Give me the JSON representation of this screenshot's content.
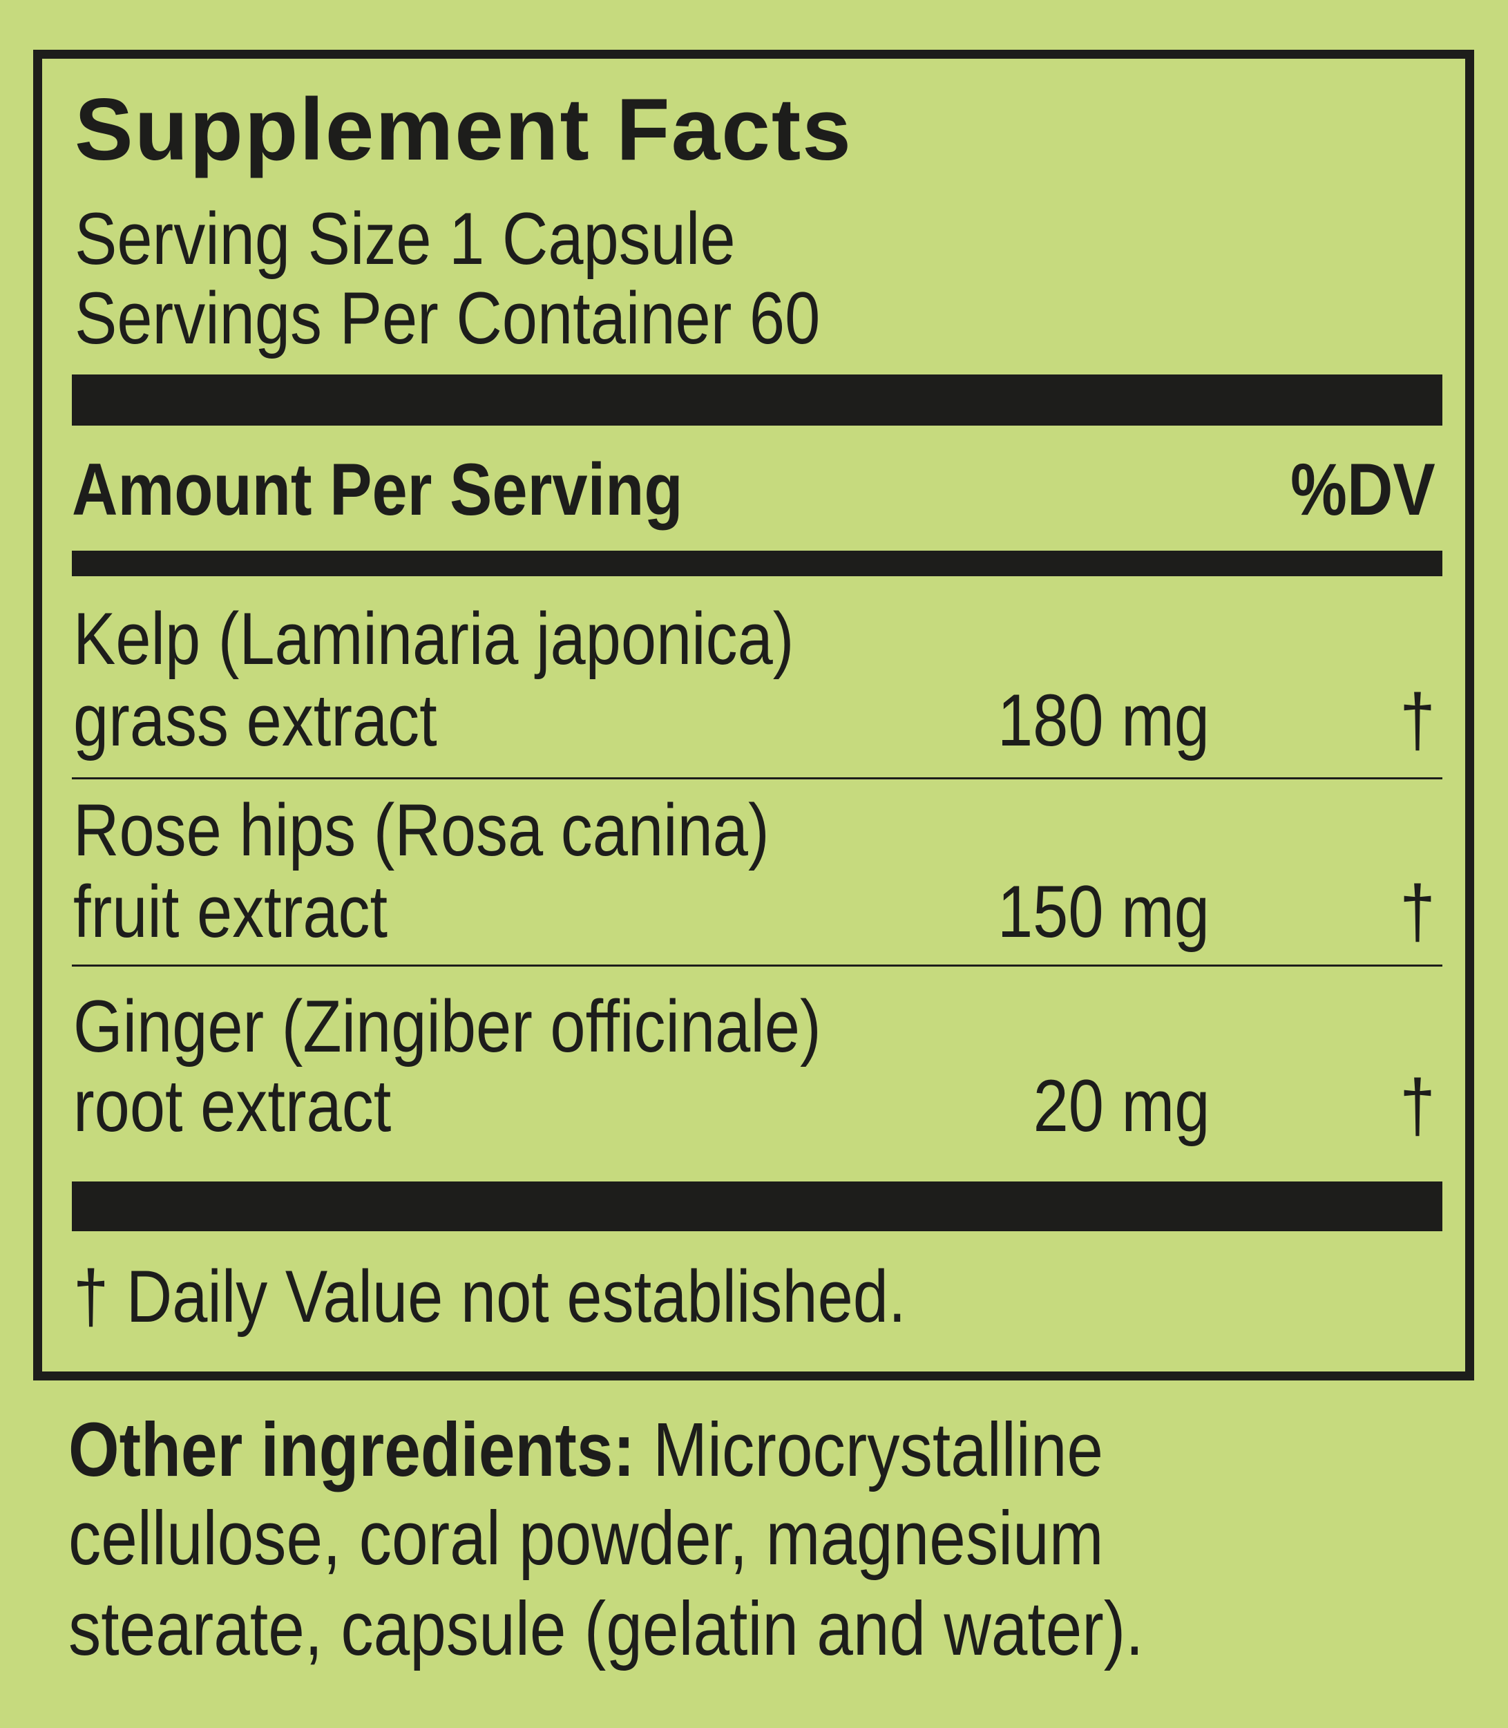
{
  "panel": {
    "title": "Supplement Facts",
    "serving_size": "Serving Size 1 Capsule",
    "servings_per_container": "Servings Per Container 60",
    "header_amount": "Amount Per Serving",
    "header_dv": "%DV",
    "ingredients": [
      {
        "name_line1": "Kelp (Laminaria japonica)",
        "name_line2": "grass extract",
        "amount": "180 mg",
        "dv": "†"
      },
      {
        "name_line1": "Rose hips (Rosa canina)",
        "name_line2": "fruit extract",
        "amount": "150 mg",
        "dv": "†"
      },
      {
        "name_line1": "Ginger (Zingiber officinale)",
        "name_line2": "root extract",
        "amount": "20 mg",
        "dv": "†"
      }
    ],
    "footnote": "† Daily Value not established."
  },
  "other_ingredients": {
    "label": "Other ingredients:",
    "line1": " Microcrystalline",
    "line2": "cellulose, coral powder, magnesium",
    "line3": "stearate, capsule (gelatin and water)."
  },
  "colors": {
    "background": "#c6da7e",
    "ink": "#1d1d1b"
  }
}
